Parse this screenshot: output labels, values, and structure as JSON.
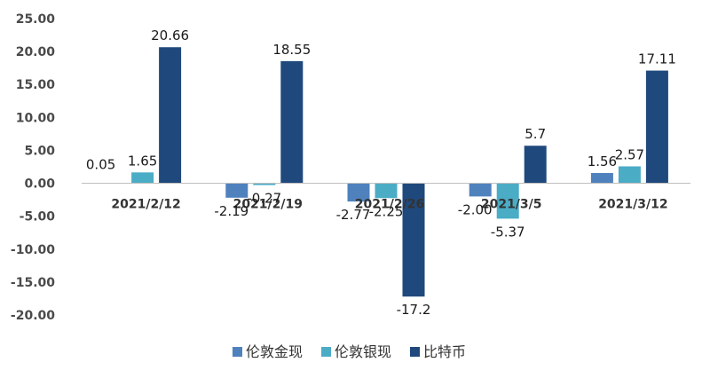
{
  "chart_data": {
    "type": "bar",
    "categories": [
      "2021/2/12",
      "2021/2/19",
      "2021/2/26",
      "2021/3/5",
      "2021/3/12"
    ],
    "series": [
      {
        "name": "伦敦金现",
        "color": "#4f81bd",
        "values": [
          0.05,
          -2.19,
          -2.77,
          -2.0,
          1.56
        ],
        "labels": [
          "0.05",
          "-2.19",
          "-2.77",
          "-2.00",
          "1.56"
        ]
      },
      {
        "name": "伦敦银现",
        "color": "#4bacc6",
        "values": [
          1.65,
          -0.27,
          -2.25,
          -5.37,
          2.57
        ],
        "labels": [
          "1.65",
          "-0.27",
          "-2.25",
          "-5.37",
          "2.57"
        ]
      },
      {
        "name": "比特币",
        "color": "#1f497d",
        "values": [
          20.66,
          18.55,
          -17.2,
          5.7,
          17.11
        ],
        "labels": [
          "20.66",
          "18.55",
          "-17.2",
          "5.7",
          "17.11"
        ]
      }
    ],
    "ylim": [
      -20,
      25
    ],
    "yticks": [
      "25.00",
      "20.00",
      "15.00",
      "10.00",
      "5.00",
      "0.00",
      "-5.00",
      "-10.00",
      "-15.00",
      "-20.00"
    ],
    "ytick_values": [
      25,
      20,
      15,
      10,
      5,
      0,
      -5,
      -10,
      -15,
      -20
    ],
    "legend_position": "bottom",
    "grid": false
  }
}
